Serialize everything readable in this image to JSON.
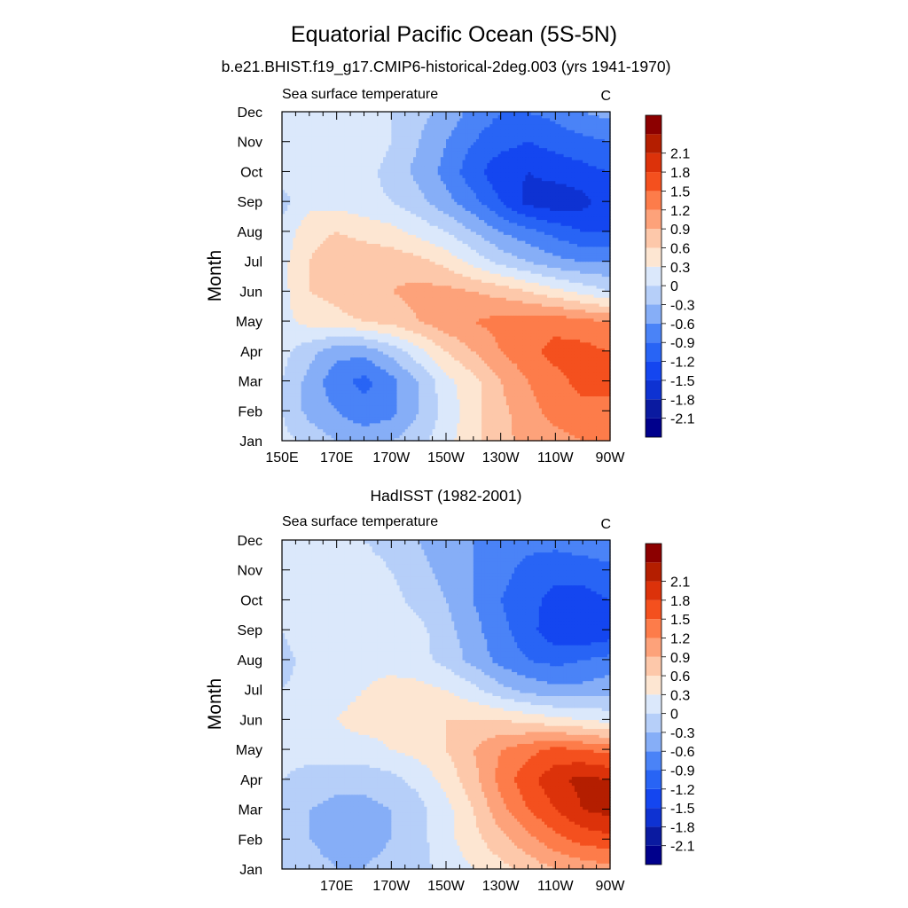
{
  "figure": {
    "title": "Equatorial Pacific Ocean (5S-5N)"
  },
  "palette": {
    "levels": [
      -2.1,
      -1.8,
      -1.5,
      -1.2,
      -0.9,
      -0.6,
      -0.3,
      0,
      0.3,
      0.6,
      0.9,
      1.2,
      1.5,
      1.8,
      2.1
    ],
    "colors": [
      "#00008c",
      "#0a1aa0",
      "#0e32d2",
      "#1446f0",
      "#2864f5",
      "#4a83f7",
      "#86aef7",
      "#b6cff9",
      "#dbe8fb",
      "#fde6d2",
      "#fdc8aa",
      "#fda27a",
      "#fd7c4a",
      "#f4501e",
      "#dc320a",
      "#b41e00",
      "#8c0000"
    ]
  },
  "chart_data": [
    {
      "type": "heatmap",
      "title": "b.e21.BHIST.f19_g17.CMIP6-historical-2deg.003 (yrs 1941-1970)",
      "left_label": "Sea surface temperature",
      "units": "C",
      "ylabel": "Month",
      "xlabel": "",
      "x_ticks": [
        "150E",
        "170E",
        "170W",
        "150W",
        "130W",
        "110W",
        "90W"
      ],
      "x_tick_values": [
        150,
        170,
        190,
        210,
        230,
        250,
        270
      ],
      "y_ticks": [
        "Jan",
        "Feb",
        "Mar",
        "Apr",
        "May",
        "Jun",
        "Jul",
        "Aug",
        "Sep",
        "Oct",
        "Nov",
        "Dec"
      ],
      "xlim": [
        150,
        270
      ],
      "ylim": [
        1,
        12
      ],
      "x": [
        150,
        160,
        170,
        180,
        190,
        200,
        210,
        220,
        230,
        240,
        250,
        260,
        270
      ],
      "values": [
        [
          0.1,
          -0.1,
          -0.3,
          -0.4,
          -0.3,
          -0.1,
          0.2,
          0.5,
          0.8,
          1.0,
          1.1,
          1.2,
          1.2
        ],
        [
          0.0,
          -0.4,
          -0.6,
          -0.8,
          -0.7,
          -0.3,
          0.1,
          0.5,
          0.8,
          1.1,
          1.3,
          1.4,
          1.4
        ],
        [
          0.0,
          -0.4,
          -0.8,
          -1.0,
          -0.7,
          -0.3,
          0.2,
          0.5,
          0.9,
          1.2,
          1.4,
          1.6,
          1.6
        ],
        [
          0.1,
          -0.2,
          -0.5,
          -0.5,
          -0.2,
          0.2,
          0.6,
          0.9,
          1.2,
          1.4,
          1.6,
          1.6,
          1.5
        ],
        [
          0.2,
          0.4,
          0.5,
          0.6,
          0.7,
          0.9,
          1.1,
          1.2,
          1.3,
          1.4,
          1.4,
          1.3,
          1.2
        ],
        [
          0.2,
          0.6,
          0.7,
          0.9,
          0.9,
          1.0,
          1.0,
          0.9,
          0.8,
          0.6,
          0.4,
          0.2,
          0.0
        ],
        [
          0.2,
          0.6,
          0.8,
          0.8,
          0.8,
          0.7,
          0.5,
          0.2,
          -0.1,
          -0.3,
          -0.5,
          -0.6,
          -0.6
        ],
        [
          0.1,
          0.5,
          0.6,
          0.5,
          0.4,
          0.2,
          0.0,
          -0.3,
          -0.6,
          -0.8,
          -1.0,
          -1.2,
          -1.2
        ],
        [
          -0.1,
          0.2,
          0.2,
          0.1,
          0.0,
          -0.2,
          -0.5,
          -0.8,
          -1.2,
          -1.6,
          -1.7,
          -1.6,
          -1.3
        ],
        [
          0.1,
          0.2,
          0.2,
          0.1,
          -0.1,
          -0.4,
          -0.7,
          -1.1,
          -1.4,
          -1.5,
          -1.4,
          -1.3,
          -1.2
        ],
        [
          0.1,
          0.2,
          0.3,
          0.2,
          0.0,
          -0.3,
          -0.6,
          -0.9,
          -1.1,
          -1.2,
          -1.1,
          -1.0,
          -0.9
        ],
        [
          0.1,
          0.2,
          0.2,
          0.2,
          0.0,
          -0.2,
          -0.4,
          -0.7,
          -0.9,
          -0.9,
          -0.8,
          -0.6,
          -0.5
        ]
      ]
    },
    {
      "type": "heatmap",
      "title": "HadISST (1982-2001)",
      "left_label": "Sea surface temperature",
      "units": "C",
      "ylabel": "Month",
      "xlabel": "",
      "x_ticks": [
        "170E",
        "170W",
        "150W",
        "130W",
        "110W",
        "90W"
      ],
      "x_tick_values": [
        170,
        190,
        210,
        230,
        250,
        270
      ],
      "y_ticks": [
        "Jan",
        "Feb",
        "Mar",
        "Apr",
        "May",
        "Jun",
        "Jul",
        "Aug",
        "Sep",
        "Oct",
        "Nov",
        "Dec"
      ],
      "xlim": [
        150,
        270
      ],
      "ylim": [
        1,
        12
      ],
      "x": [
        150,
        160,
        170,
        180,
        190,
        200,
        210,
        220,
        230,
        240,
        250,
        260,
        270
      ],
      "values": [
        [
          -0.1,
          -0.2,
          -0.3,
          -0.3,
          -0.2,
          -0.1,
          0.1,
          0.3,
          0.5,
          0.7,
          0.9,
          1.0,
          1.1
        ],
        [
          -0.1,
          -0.3,
          -0.4,
          -0.4,
          -0.3,
          -0.1,
          0.2,
          0.5,
          0.8,
          1.1,
          1.4,
          1.6,
          1.7
        ],
        [
          -0.1,
          -0.3,
          -0.4,
          -0.4,
          -0.3,
          -0.1,
          0.2,
          0.6,
          1.1,
          1.5,
          1.8,
          2.1,
          2.2
        ],
        [
          0.0,
          -0.1,
          -0.2,
          -0.2,
          -0.1,
          0.1,
          0.4,
          0.8,
          1.3,
          1.7,
          2.0,
          2.2,
          2.1
        ],
        [
          0.1,
          0.1,
          0.2,
          0.2,
          0.3,
          0.4,
          0.6,
          0.9,
          1.2,
          1.4,
          1.6,
          1.5,
          1.4
        ],
        [
          0.1,
          0.2,
          0.3,
          0.4,
          0.4,
          0.5,
          0.6,
          0.6,
          0.6,
          0.5,
          0.4,
          0.3,
          0.2
        ],
        [
          0.0,
          0.1,
          0.2,
          0.3,
          0.4,
          0.4,
          0.3,
          0.1,
          -0.2,
          -0.4,
          -0.5,
          -0.5,
          -0.4
        ],
        [
          -0.1,
          0.1,
          0.2,
          0.2,
          0.2,
          0.1,
          -0.1,
          -0.4,
          -0.7,
          -0.9,
          -1.0,
          -0.9,
          -0.8
        ],
        [
          0.0,
          0.2,
          0.2,
          0.3,
          0.2,
          0.1,
          -0.2,
          -0.5,
          -0.8,
          -1.1,
          -1.4,
          -1.5,
          -1.4
        ],
        [
          0.1,
          0.2,
          0.2,
          0.2,
          0.1,
          -0.1,
          -0.3,
          -0.6,
          -0.9,
          -1.1,
          -1.3,
          -1.3,
          -1.2
        ],
        [
          0.1,
          0.2,
          0.2,
          0.1,
          0.0,
          -0.2,
          -0.4,
          -0.6,
          -0.8,
          -1.0,
          -1.1,
          -1.1,
          -1.0
        ],
        [
          0.1,
          0.1,
          0.1,
          0.0,
          -0.1,
          -0.3,
          -0.5,
          -0.6,
          -0.7,
          -0.8,
          -0.8,
          -0.7,
          -0.6
        ]
      ]
    }
  ]
}
